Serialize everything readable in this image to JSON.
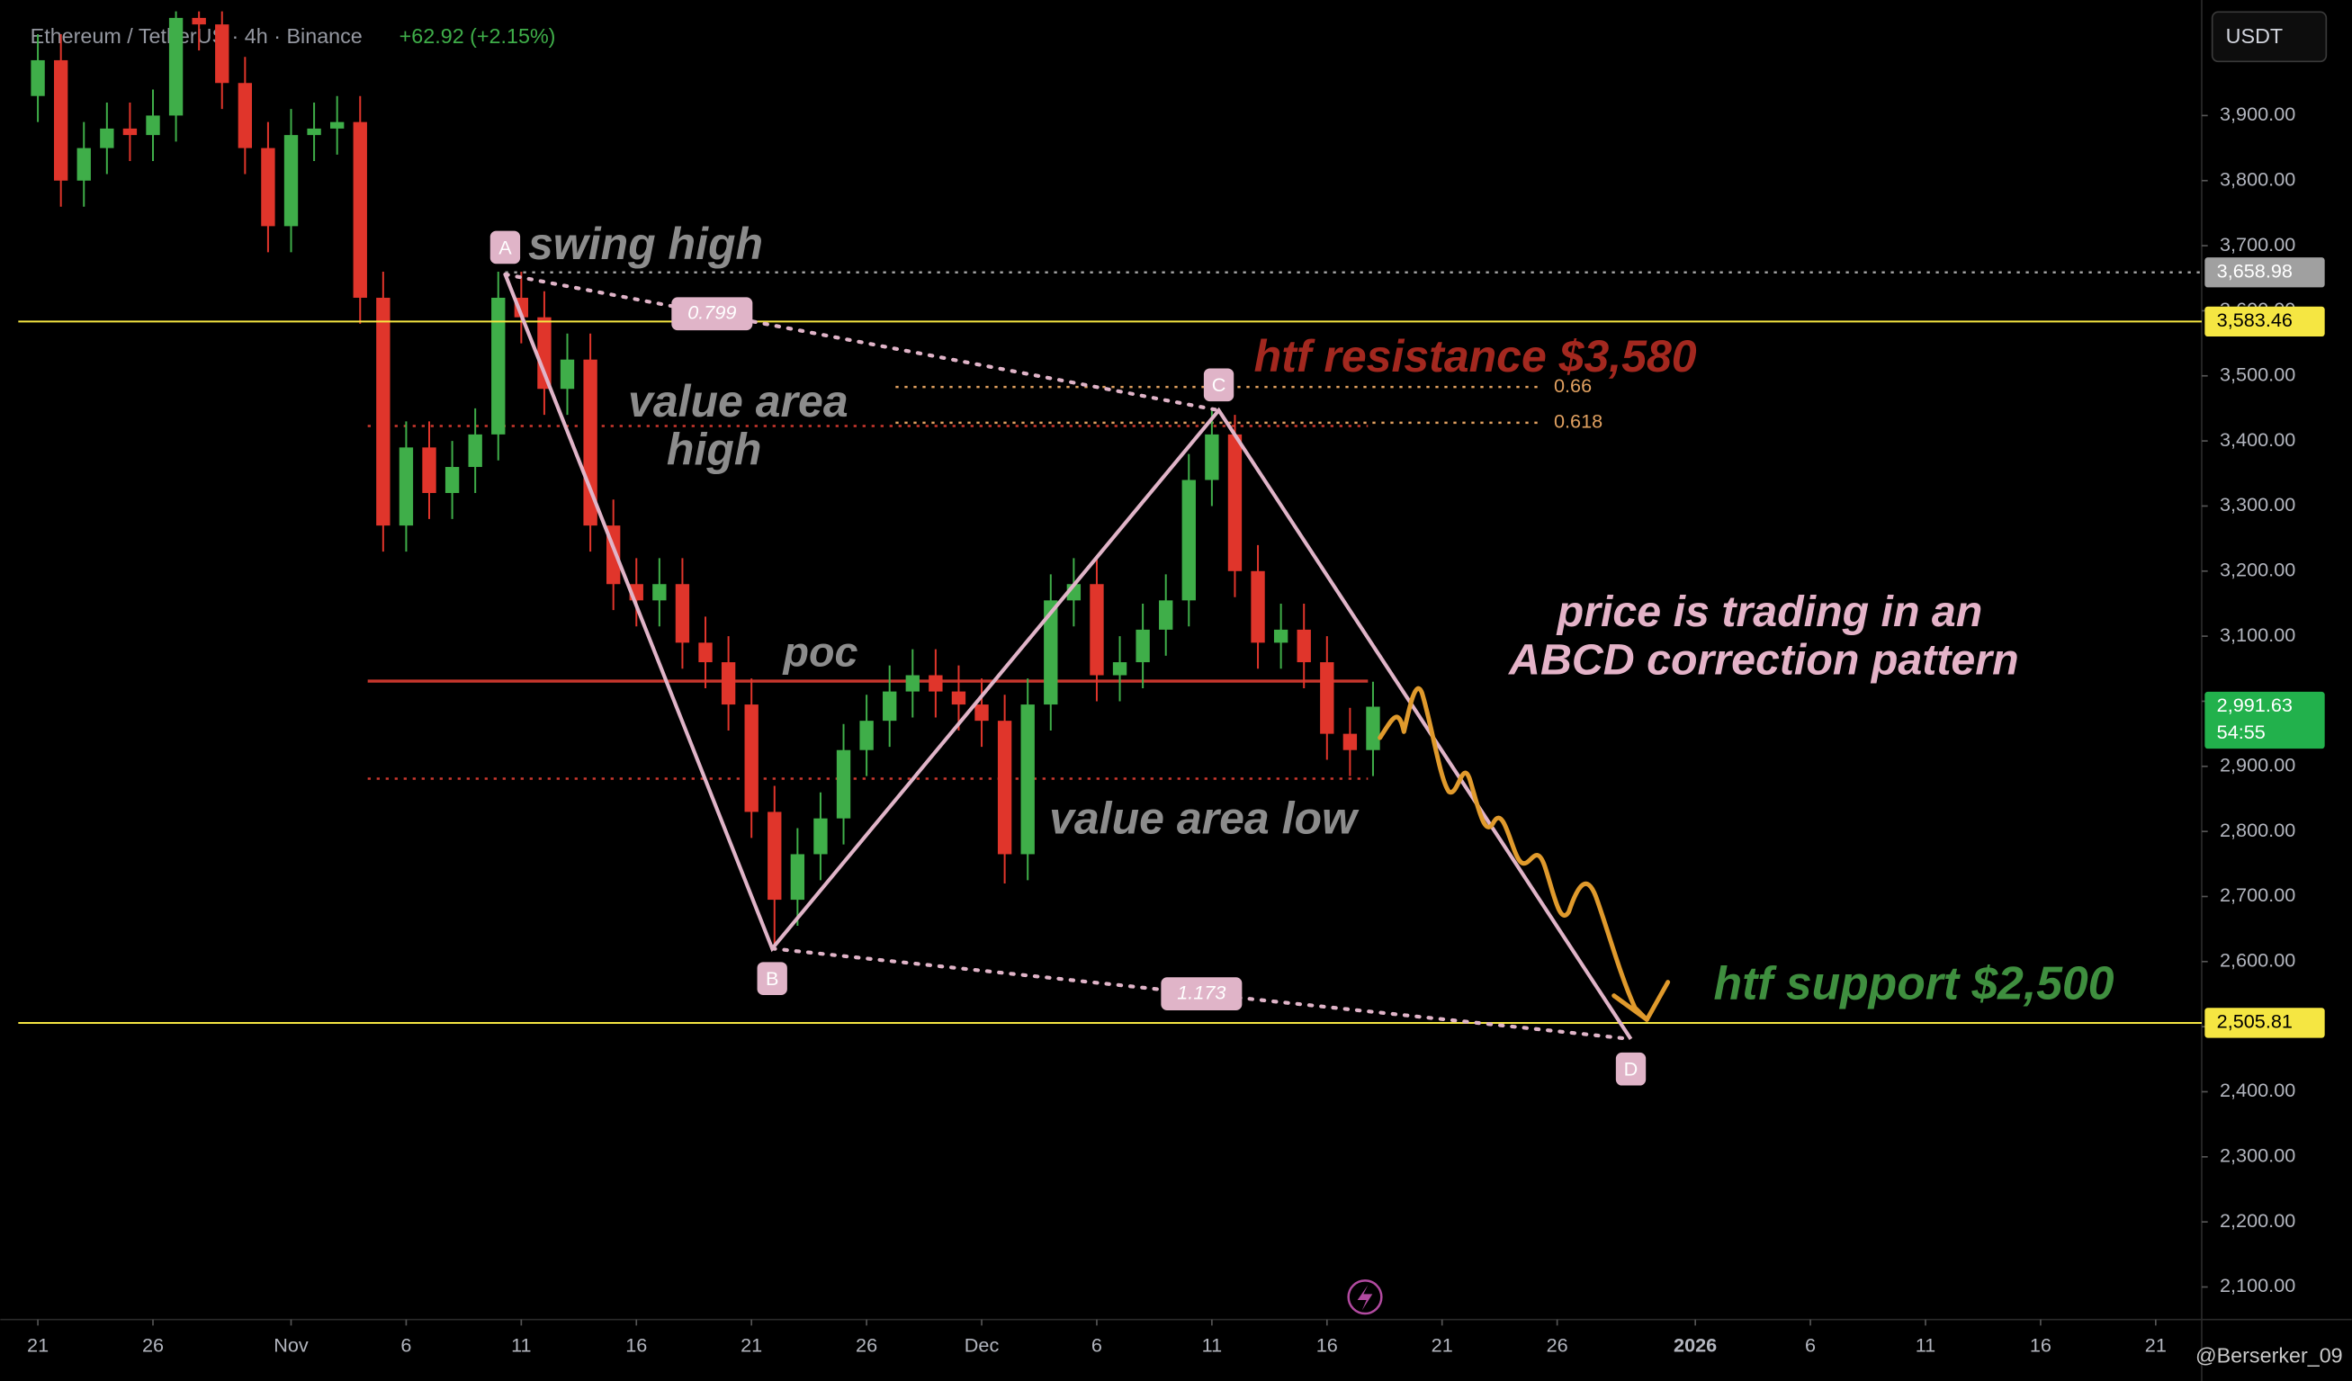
{
  "chart_data": {
    "type": "candlestick",
    "title": "Ethereum / TetherUS · 4h · Binance",
    "change": "+62.92 (+2.15%)",
    "currency": "USDT",
    "watermark": "@Berserker_09",
    "up_color": "#3fae49",
    "down_color": "#e0352b",
    "x": [
      0,
      1,
      2,
      3,
      4,
      5,
      6,
      7,
      8,
      9,
      10,
      11,
      12,
      13,
      14,
      15,
      16,
      17,
      18,
      19,
      20,
      21,
      22,
      23,
      24,
      25,
      26,
      27,
      28,
      29,
      30,
      31,
      32,
      33,
      34,
      35,
      36,
      37,
      38,
      39,
      40,
      41,
      42,
      43,
      44,
      45,
      46,
      47,
      48,
      49,
      50,
      51,
      52,
      53,
      54,
      55,
      56,
      57,
      58
    ],
    "open": [
      3930,
      3985,
      3800,
      3850,
      3880,
      3870,
      3900,
      4050,
      4040,
      3950,
      3850,
      3730,
      3870,
      3880,
      3890,
      3620,
      3270,
      3390,
      3320,
      3360,
      3410,
      3620,
      3590,
      3480,
      3525,
      3270,
      3180,
      3155,
      3180,
      3090,
      3060,
      2995,
      2830,
      2695,
      2765,
      2820,
      2925,
      2970,
      3015,
      3040,
      3015,
      2995,
      2970,
      2765,
      2995,
      3155,
      3180,
      3040,
      3060,
      3110,
      3155,
      3340,
      3410,
      3200,
      3090,
      3110,
      3060,
      2950,
      2925
    ],
    "high": [
      4025,
      4025,
      3890,
      3920,
      3920,
      3940,
      4060,
      4060,
      4060,
      3990,
      3890,
      3910,
      3920,
      3930,
      3930,
      3660,
      3430,
      3430,
      3400,
      3450,
      3660,
      3660,
      3630,
      3565,
      3565,
      3310,
      3220,
      3220,
      3220,
      3130,
      3100,
      3035,
      2870,
      2805,
      2860,
      2965,
      3010,
      3055,
      3080,
      3080,
      3055,
      3035,
      3010,
      3035,
      3195,
      3220,
      3220,
      3100,
      3150,
      3195,
      3380,
      3447,
      3440,
      3240,
      3150,
      3150,
      3100,
      2990,
      3030
    ],
    "low": [
      3890,
      3760,
      3760,
      3810,
      3830,
      3830,
      3860,
      4000,
      3910,
      3810,
      3690,
      3690,
      3830,
      3840,
      3580,
      3230,
      3230,
      3280,
      3280,
      3320,
      3370,
      3550,
      3440,
      3440,
      3230,
      3140,
      3115,
      3115,
      3050,
      3020,
      2955,
      2790,
      2620,
      2655,
      2725,
      2780,
      2885,
      2930,
      2975,
      2975,
      2955,
      2930,
      2720,
      2725,
      2955,
      3115,
      3000,
      3000,
      3020,
      3070,
      3115,
      3300,
      3160,
      3050,
      3050,
      3020,
      2910,
      2885,
      2885
    ],
    "close": [
      3985,
      3800,
      3850,
      3880,
      3870,
      3900,
      4050,
      4040,
      3950,
      3850,
      3730,
      3870,
      3880,
      3890,
      3620,
      3270,
      3390,
      3320,
      3360,
      3410,
      3620,
      3590,
      3480,
      3525,
      3270,
      3180,
      3155,
      3180,
      3090,
      3060,
      2995,
      2830,
      2695,
      2765,
      2820,
      2925,
      2970,
      3015,
      3040,
      3015,
      2995,
      2970,
      2765,
      2995,
      3155,
      3180,
      3040,
      3060,
      3110,
      3155,
      3340,
      3410,
      3200,
      3090,
      3110,
      3060,
      2950,
      2925,
      2991.63
    ],
    "xlim": [
      -0.85,
      94
    ],
    "ylim": [
      2050,
      4066
    ],
    "xticks": [
      {
        "value": 0,
        "label": "21"
      },
      {
        "value": 5,
        "label": "26"
      },
      {
        "value": 11,
        "label": "Nov"
      },
      {
        "value": 16,
        "label": "6"
      },
      {
        "value": 21,
        "label": "11"
      },
      {
        "value": 26,
        "label": "16"
      },
      {
        "value": 31,
        "label": "21"
      },
      {
        "value": 36,
        "label": "26"
      },
      {
        "value": 41,
        "label": "Dec"
      },
      {
        "value": 46,
        "label": "6"
      },
      {
        "value": 51,
        "label": "11"
      },
      {
        "value": 56,
        "label": "16"
      },
      {
        "value": 61,
        "label": "21"
      },
      {
        "value": 66,
        "label": "26"
      },
      {
        "value": 72,
        "label": "2026"
      },
      {
        "value": 77,
        "label": "6"
      },
      {
        "value": 82,
        "label": "11"
      },
      {
        "value": 87,
        "label": "16"
      },
      {
        "value": 92,
        "label": "21"
      }
    ],
    "yticks": [
      {
        "value": 2100,
        "label": "2,100.00"
      },
      {
        "value": 2200,
        "label": "2,200.00"
      },
      {
        "value": 2300,
        "label": "2,300.00"
      },
      {
        "value": 2400,
        "label": "2,400.00"
      },
      {
        "value": 2500,
        "label": "2,500.00"
      },
      {
        "value": 2600,
        "label": "2,600.00"
      },
      {
        "value": 2700,
        "label": "2,700.00"
      },
      {
        "value": 2800,
        "label": "2,800.00"
      },
      {
        "value": 2900,
        "label": "2,900.00"
      },
      {
        "value": 3000,
        "label": "3,000.00"
      },
      {
        "value": 3100,
        "label": "3,100.00"
      },
      {
        "value": 3200,
        "label": "3,200.00"
      },
      {
        "value": 3300,
        "label": "3,300.00"
      },
      {
        "value": 3400,
        "label": "3,400.00"
      },
      {
        "value": 3500,
        "label": "3,500.00"
      },
      {
        "value": 3600,
        "label": "3,600.00"
      },
      {
        "value": 3700,
        "label": "3,700.00"
      },
      {
        "value": 3800,
        "label": "3,800.00"
      },
      {
        "value": 3900,
        "label": "3,900.00"
      }
    ],
    "price_lines": [
      {
        "value": 3658.98,
        "label": "3,658.98",
        "color": "#a0a0a0",
        "style": "dotted"
      },
      {
        "value": 3583.46,
        "label": "3,583.46",
        "color": "#f5e642",
        "style": "solid"
      },
      {
        "value": 2505.81,
        "label": "2,505.81",
        "color": "#f5e642",
        "style": "solid"
      }
    ],
    "last_price": {
      "value": 2991.63,
      "label": "2,991.63",
      "countdown": "54:55",
      "color": "#22b14c"
    },
    "level_color": "#c8372d",
    "levels": [
      {
        "value": 3423,
        "style": "dotted"
      },
      {
        "value": 3031,
        "style": "solid"
      },
      {
        "value": 2881,
        "style": "dotted"
      }
    ],
    "fib_color": "#e0a060",
    "fib_levels": [
      {
        "value": 3483,
        "label": "0.66"
      },
      {
        "value": 3428,
        "label": "0.618"
      }
    ],
    "pattern_color": "#e0b4c8",
    "pattern": [
      {
        "label": "A",
        "x": 20.3,
        "y": 3656
      },
      {
        "label": "B",
        "x": 31.9,
        "y": 2620
      },
      {
        "label": "C",
        "x": 51.3,
        "y": 3447
      },
      {
        "label": "D",
        "x": 69.2,
        "y": 2481
      }
    ],
    "fib_ratios": [
      0.799,
      1.173
    ],
    "annotations": [
      {
        "text": "swing high",
        "color": "#8c8c8c"
      },
      {
        "text": "htf resistance $3,580",
        "color": "#a3281f"
      },
      {
        "text": "value area",
        "color": "#8c8c8c"
      },
      {
        "text": "high",
        "color": "#8c8c8c"
      },
      {
        "text": "poc",
        "color": "#8c8c8c"
      },
      {
        "text": "value area low",
        "color": "#8c8c8c"
      },
      {
        "text": "price is trading in an",
        "color": "#e4b3c8"
      },
      {
        "text": "ABCD correction pattern",
        "color": "#e4b3c8"
      },
      {
        "text": "htf support $2,500",
        "color": "#3f8f3f"
      }
    ],
    "projection_color": "#e09a2c"
  }
}
